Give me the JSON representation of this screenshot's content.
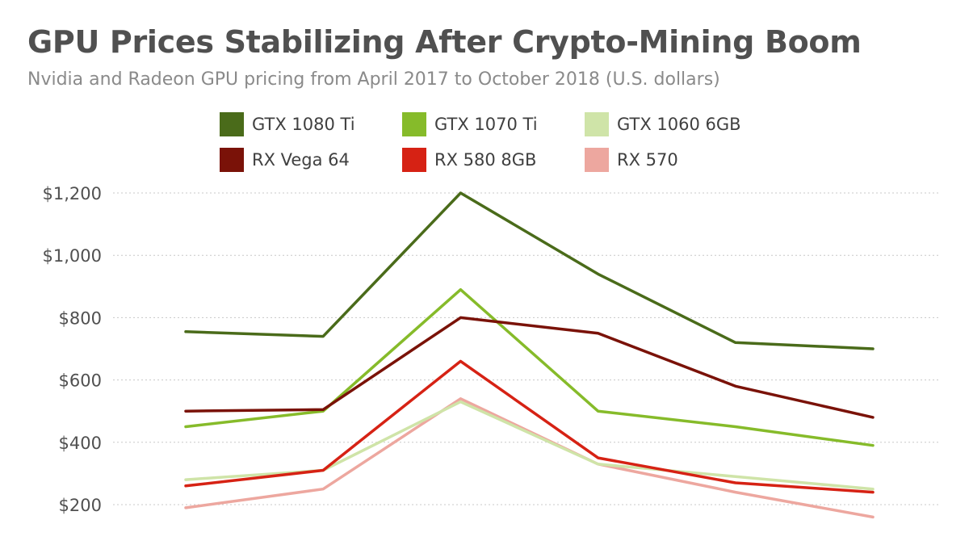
{
  "header": {
    "title": "GPU Prices Stabilizing After Crypto-Mining Boom",
    "subtitle": "Nvidia and Radeon GPU pricing from April 2017 to October 2018 (U.S. dollars)"
  },
  "chart_data": {
    "type": "line",
    "title": "GPU Prices Stabilizing After Crypto-Mining Boom",
    "subtitle": "Nvidia and Radeon GPU pricing from April 2017 to October 2018 (U.S. dollars)",
    "xlabel": "",
    "ylabel": "",
    "y_ticks": [
      200,
      400,
      600,
      800,
      1000,
      1200
    ],
    "y_tick_labels": [
      "$200",
      "$400",
      "$600",
      "$800",
      "$1,000",
      "$1,200"
    ],
    "ylim": [
      200,
      1200
    ],
    "grid": true,
    "legend_position": "top",
    "series": [
      {
        "name": "GTX 1080 Ti",
        "color": "#4a6b1a",
        "values": [
          755,
          740,
          1200,
          940,
          720,
          700
        ]
      },
      {
        "name": "GTX 1070 Ti",
        "color": "#86bb2a",
        "values": [
          450,
          500,
          890,
          500,
          450,
          390
        ]
      },
      {
        "name": "GTX 1060 6GB",
        "color": "#cfe4a8",
        "values": [
          280,
          310,
          530,
          330,
          290,
          250
        ]
      },
      {
        "name": "RX Vega 64",
        "color": "#7a1208",
        "values": [
          500,
          505,
          800,
          750,
          580,
          480
        ]
      },
      {
        "name": "RX 580 8GB",
        "color": "#d62214",
        "values": [
          260,
          310,
          660,
          350,
          270,
          240
        ]
      },
      {
        "name": "RX 570",
        "color": "#eda79f",
        "values": [
          190,
          250,
          540,
          330,
          240,
          160
        ]
      }
    ]
  }
}
